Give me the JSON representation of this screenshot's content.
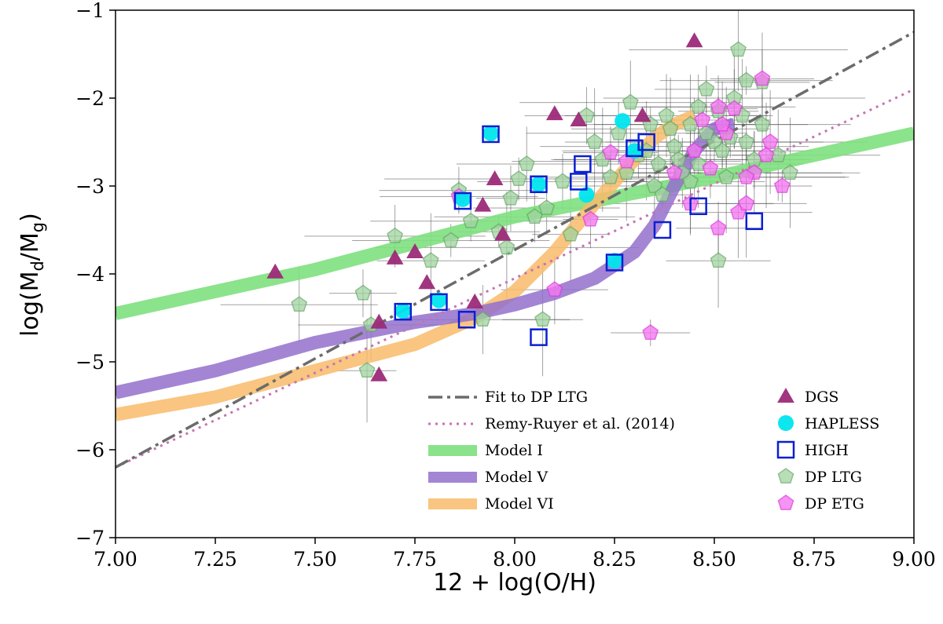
{
  "chart_data": {
    "type": "scatter",
    "xlabel": "12 + log(O/H)",
    "ylabel": "log(M_d/M_g)",
    "xlim": [
      7.0,
      9.0
    ],
    "ylim": [
      -7,
      -1
    ],
    "x_ticks": [
      "7.00",
      "7.25",
      "7.50",
      "7.75",
      "8.00",
      "8.25",
      "8.50",
      "8.75",
      "9.00"
    ],
    "y_ticks": [
      "−1",
      "−2",
      "−3",
      "−4",
      "−5",
      "−6",
      "−7"
    ],
    "colors": {
      "fit": "#6b6b6b",
      "remy": "#c673b3",
      "model_1": "#7ee07e",
      "model_5": "#9370cc",
      "model_6": "#f8bb6a",
      "dgs": "#9c2b79",
      "hapless": "#00e5ee",
      "high": "#0a1fd1",
      "dp_ltg": "#9fd49f",
      "dp_etg": "#f37af0",
      "errorbar": "#555555"
    },
    "lines": [
      {
        "id": "fit",
        "name": "Fit to DP LTG",
        "style": "dashdot",
        "x": [
          7.0,
          9.0
        ],
        "y": [
          -6.2,
          -1.25
        ]
      },
      {
        "id": "remy",
        "name": "Remy-Ruyer et al. (2014)",
        "style": "dotted",
        "x": [
          7.0,
          9.0
        ],
        "y": [
          -6.2,
          -1.9
        ]
      },
      {
        "id": "model_1",
        "name": "Model I",
        "style": "band",
        "x": [
          7.0,
          7.5,
          8.0,
          8.5,
          9.0
        ],
        "y": [
          -4.45,
          -3.95,
          -3.35,
          -2.9,
          -2.4
        ]
      },
      {
        "id": "model_5",
        "name": "Model V",
        "style": "band",
        "x": [
          7.0,
          7.25,
          7.5,
          7.75,
          7.9,
          8.0,
          8.1,
          8.2,
          8.3,
          8.35,
          8.4,
          8.45,
          8.5,
          8.55
        ],
        "y": [
          -5.35,
          -5.1,
          -4.78,
          -4.55,
          -4.45,
          -4.35,
          -4.22,
          -4.05,
          -3.75,
          -3.45,
          -3.0,
          -2.6,
          -2.35,
          -2.3
        ]
      },
      {
        "id": "model_6",
        "name": "Model VI",
        "style": "band",
        "x": [
          7.0,
          7.25,
          7.5,
          7.75,
          7.9,
          8.0,
          8.1,
          8.2,
          8.25,
          8.3,
          8.35,
          8.4,
          8.45
        ],
        "y": [
          -5.6,
          -5.4,
          -5.1,
          -4.8,
          -4.5,
          -4.2,
          -3.75,
          -3.2,
          -2.95,
          -2.7,
          -2.45,
          -2.3,
          -2.2
        ]
      }
    ],
    "series": [
      {
        "id": "dgs",
        "name": "DGS",
        "marker": "triangle",
        "x": [
          7.4,
          7.66,
          7.66,
          7.7,
          7.75,
          7.78,
          7.9,
          7.92,
          7.95,
          7.97,
          8.1,
          8.16,
          8.32,
          8.45
        ],
        "y": [
          -3.98,
          -4.55,
          -5.15,
          -3.82,
          -3.75,
          -4.1,
          -4.32,
          -3.22,
          -2.92,
          -3.55,
          -2.18,
          -2.25,
          -2.2,
          -1.35
        ]
      },
      {
        "id": "hapless",
        "name": "HAPLESS",
        "marker": "circle",
        "x": [
          7.72,
          7.81,
          7.87,
          7.94,
          8.06,
          8.18,
          8.27,
          8.3,
          8.25
        ],
        "y": [
          -4.42,
          -4.3,
          -3.15,
          -2.4,
          -2.98,
          -3.1,
          -2.26,
          -2.6,
          -3.85
        ]
      },
      {
        "id": "high",
        "name": "HIGH",
        "marker": "square",
        "x": [
          7.72,
          7.81,
          7.87,
          7.88,
          7.94,
          8.06,
          8.06,
          8.16,
          8.17,
          8.25,
          8.3,
          8.33,
          8.37,
          8.46,
          8.6
        ],
        "y": [
          -4.43,
          -4.32,
          -3.17,
          -4.52,
          -2.41,
          -2.98,
          -4.72,
          -2.95,
          -2.75,
          -3.87,
          -2.57,
          -2.5,
          -3.5,
          -3.23,
          -3.4
        ]
      },
      {
        "id": "dp_ltg",
        "name": "DP LTG",
        "marker": "pentagon",
        "x": [
          7.46,
          7.62,
          7.64,
          7.63,
          7.7,
          7.79,
          7.84,
          7.86,
          7.89,
          7.92,
          7.96,
          7.98,
          7.99,
          8.01,
          8.03,
          8.05,
          8.07,
          8.08,
          8.12,
          8.14,
          8.18,
          8.2,
          8.22,
          8.24,
          8.26,
          8.29,
          8.31,
          8.34,
          8.36,
          8.38,
          8.4,
          8.42,
          8.44,
          8.46,
          8.48,
          8.5,
          8.51,
          8.53,
          8.55,
          8.56,
          8.58,
          8.6,
          8.62,
          8.66,
          8.69,
          8.48,
          8.52,
          8.57,
          8.44,
          8.35,
          8.28,
          8.41,
          8.54,
          8.46,
          8.39,
          8.62,
          8.51,
          8.37,
          8.33,
          8.58
        ],
        "y": [
          -4.35,
          -4.22,
          -4.58,
          -5.1,
          -3.57,
          -3.85,
          -3.62,
          -3.05,
          -3.4,
          -4.52,
          -3.52,
          -3.7,
          -3.14,
          -2.92,
          -2.75,
          -3.35,
          -4.52,
          -3.25,
          -2.95,
          -3.55,
          -2.2,
          -2.5,
          -2.7,
          -2.9,
          -2.4,
          -2.05,
          -2.65,
          -2.3,
          -2.75,
          -2.2,
          -2.55,
          -2.85,
          -2.3,
          -2.1,
          -1.9,
          -2.5,
          -3.85,
          -2.9,
          -2.0,
          -1.45,
          -1.8,
          -2.7,
          -2.3,
          -2.65,
          -2.85,
          -2.4,
          -2.6,
          -2.2,
          -2.95,
          -3.0,
          -2.85,
          -2.7,
          -2.45,
          -2.75,
          -2.35,
          -1.82,
          -2.15,
          -3.1,
          -2.6,
          -2.5
        ]
      },
      {
        "id": "dp_etg",
        "name": "DP ETG",
        "marker": "pentagon",
        "x": [
          7.86,
          8.1,
          8.19,
          8.24,
          8.28,
          8.34,
          8.4,
          8.47,
          8.51,
          8.53,
          8.56,
          8.58,
          8.6,
          8.62,
          8.64,
          8.67,
          8.51,
          8.55,
          8.49,
          8.45,
          8.44,
          8.63,
          8.58,
          8.52
        ],
        "y": [
          -3.12,
          -4.18,
          -3.38,
          -2.62,
          -2.72,
          -4.67,
          -2.85,
          -2.25,
          -2.1,
          -2.4,
          -3.3,
          -3.2,
          -2.85,
          -1.78,
          -2.5,
          -3.0,
          -3.48,
          -2.12,
          -2.8,
          -2.6,
          -3.2,
          -2.65,
          -2.9,
          -2.3
        ]
      }
    ],
    "legend": {
      "placement": "lower-right",
      "left_entries": [
        "Fit to DP LTG",
        "Remy-Ruyer et al. (2014)",
        "Model I",
        "Model V",
        "Model VI"
      ],
      "right_entries": [
        "DGS",
        "HAPLESS",
        "HIGH",
        "DP LTG",
        "DP ETG"
      ]
    }
  }
}
